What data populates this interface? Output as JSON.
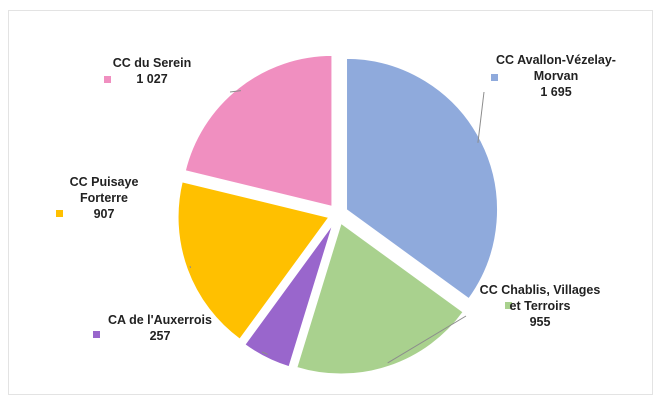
{
  "chart_data": {
    "type": "pie",
    "slices": [
      {
        "name": "CC Avallon-Vézelay-Morvan",
        "label_lines": [
          "CC Avallon-Vézelay-",
          "Morvan"
        ],
        "value": 1695,
        "value_label": "1 695",
        "color": "#8faadc"
      },
      {
        "name": "CC Chablis, Villages et Terroirs",
        "label_lines": [
          "CC Chablis, Villages",
          "et Terroirs"
        ],
        "value": 955,
        "value_label": "955",
        "color": "#a9d18e"
      },
      {
        "name": "CA de l'Auxerrois",
        "label_lines": [
          "CA de l'Auxerrois"
        ],
        "value": 257,
        "value_label": "257",
        "color": "#9966cc"
      },
      {
        "name": "CC Puisaye Forterre",
        "label_lines": [
          "CC Puisaye",
          "Forterre"
        ],
        "value": 907,
        "value_label": "907",
        "color": "#ffc000"
      },
      {
        "name": "CC du Serein",
        "label_lines": [
          "CC du Serein"
        ],
        "value": 1027,
        "value_label": "1 027",
        "color": "#f08fc0"
      }
    ],
    "start_angle_deg": 0,
    "direction": "clockwise",
    "exploded": true,
    "legend": "none (data labels with leader lines)"
  }
}
